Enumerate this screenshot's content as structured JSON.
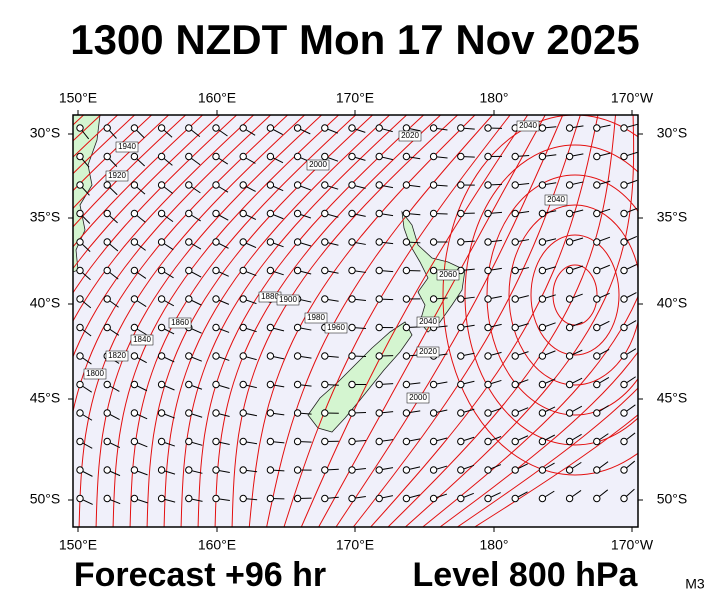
{
  "header": {
    "title": "1300 NZDT Mon 17 Nov 2025"
  },
  "map": {
    "lon_labels": [
      "150°E",
      "160°E",
      "170°E",
      "180°",
      "170°W"
    ],
    "lat_labels": [
      "30°S",
      "35°S",
      "40°S",
      "45°S",
      "50°S"
    ],
    "contour_labels": [
      "1940",
      "1920",
      "2000",
      "2020",
      "2040",
      "2040",
      "2060",
      "1880",
      "1900",
      "1980",
      "1960",
      "1860",
      "1840",
      "1820",
      "1800",
      "2040",
      "2020",
      "2000"
    ]
  },
  "footer": {
    "forecast": "Forecast +96 hr",
    "level": "Level 800 hPa",
    "model": "M3"
  }
}
